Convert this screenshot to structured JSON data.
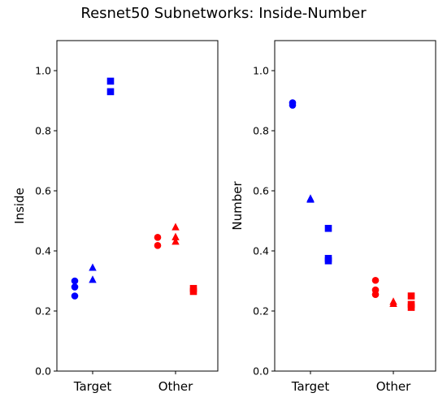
{
  "title": "Resnet50 Subnetworks: Inside-Number",
  "colors": {
    "target": "#0000ff",
    "other": "#ff0000",
    "axis": "#000000"
  },
  "chart_data": [
    {
      "type": "scatter",
      "ylabel": "Inside",
      "categories": [
        "Target",
        "Other"
      ],
      "ylim": [
        0.0,
        1.1
      ],
      "yticks": [
        "0.0",
        "0.2",
        "0.4",
        "0.6",
        "0.8",
        "1.0"
      ],
      "grid": false,
      "groups": [
        {
          "category": "Target",
          "color": "#0000ff",
          "markers": [
            {
              "shape": "circle",
              "values": [
                0.3,
                0.28,
                0.25
              ]
            },
            {
              "shape": "triangle",
              "values": [
                0.345,
                0.305
              ]
            },
            {
              "shape": "square",
              "values": [
                0.965,
                0.93
              ]
            }
          ]
        },
        {
          "category": "Other",
          "color": "#ff0000",
          "markers": [
            {
              "shape": "circle",
              "values": [
                0.445,
                0.418
              ]
            },
            {
              "shape": "triangle",
              "values": [
                0.48,
                0.447,
                0.432
              ]
            },
            {
              "shape": "square",
              "values": [
                0.275,
                0.265
              ]
            }
          ]
        }
      ]
    },
    {
      "type": "scatter",
      "ylabel": "Number",
      "categories": [
        "Target",
        "Other"
      ],
      "ylim": [
        0.0,
        1.1
      ],
      "yticks": [
        "0.0",
        "0.2",
        "0.4",
        "0.6",
        "0.8",
        "1.0"
      ],
      "grid": false,
      "groups": [
        {
          "category": "Target",
          "color": "#0000ff",
          "markers": [
            {
              "shape": "circle",
              "values": [
                0.893,
                0.885
              ]
            },
            {
              "shape": "triangle",
              "values": [
                0.575,
                0.572
              ]
            },
            {
              "shape": "square",
              "values": [
                0.475,
                0.375,
                0.367
              ]
            }
          ]
        },
        {
          "category": "Other",
          "color": "#ff0000",
          "markers": [
            {
              "shape": "circle",
              "values": [
                0.302,
                0.27,
                0.255
              ]
            },
            {
              "shape": "triangle",
              "values": [
                0.232,
                0.225
              ]
            },
            {
              "shape": "square",
              "values": [
                0.25,
                0.222,
                0.212
              ]
            }
          ]
        }
      ]
    }
  ]
}
